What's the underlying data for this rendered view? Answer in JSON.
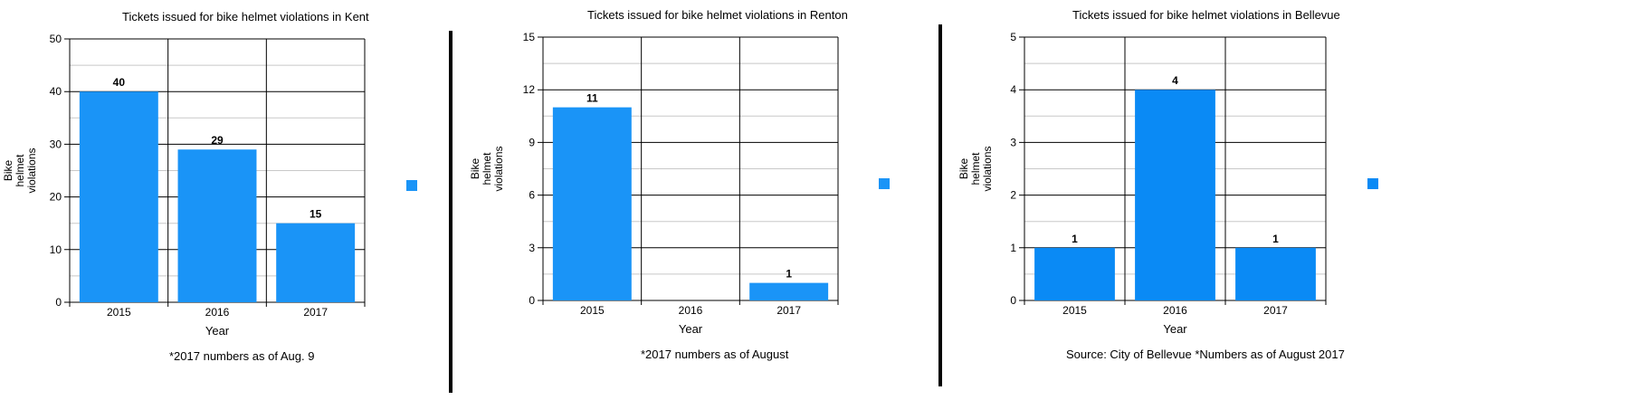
{
  "accent_color": "#1a94f7",
  "axis_title_y": [
    "Bike",
    "helmet",
    "violations"
  ],
  "charts": [
    {
      "title": "Tickets issued for bike helmet violations in Kent",
      "note": "*2017 numbers as of Aug. 9"
    },
    {
      "title": "Tickets issued for bike helmet violations in Renton",
      "note": "*2017 numbers as of August"
    },
    {
      "title": "Tickets issued for bike helmet violations in Bellevue",
      "note": "Source: City of Bellevue *Numbers as of August 2017"
    }
  ],
  "chart_data": [
    {
      "type": "bar",
      "title": "Tickets issued for bike helmet violations in Kent",
      "categories": [
        "2015",
        "2016",
        "2017"
      ],
      "values": [
        40,
        29,
        15
      ],
      "xlabel": "Year",
      "ylabel": "Bike helmet violations",
      "ylim": [
        0,
        50
      ],
      "yticks": [
        0,
        10,
        20,
        30,
        40,
        50
      ],
      "grid": true,
      "legend": "right",
      "color": "#1a94f7"
    },
    {
      "type": "bar",
      "title": "Tickets issued for bike helmet violations in Renton",
      "categories": [
        "2015",
        "2016",
        "2017"
      ],
      "values": [
        11,
        0,
        1
      ],
      "value_labels": [
        "11",
        "",
        "1"
      ],
      "xlabel": "Year",
      "ylabel": "Bike helmet violations",
      "ylim": [
        0,
        15
      ],
      "yticks": [
        0,
        3,
        6,
        9,
        12,
        15
      ],
      "grid": true,
      "legend": "right",
      "color": "#1a94f7"
    },
    {
      "type": "bar",
      "title": "Tickets issued for bike helmet violations in Bellevue",
      "categories": [
        "2015",
        "2016",
        "2017"
      ],
      "values": [
        1,
        4,
        1
      ],
      "xlabel": "Year",
      "ylabel": "Bike helmet violations",
      "ylim": [
        0,
        5
      ],
      "yticks": [
        0,
        1,
        2,
        3,
        4,
        5
      ],
      "grid": true,
      "legend": "right",
      "color": "#0a8af5"
    }
  ]
}
